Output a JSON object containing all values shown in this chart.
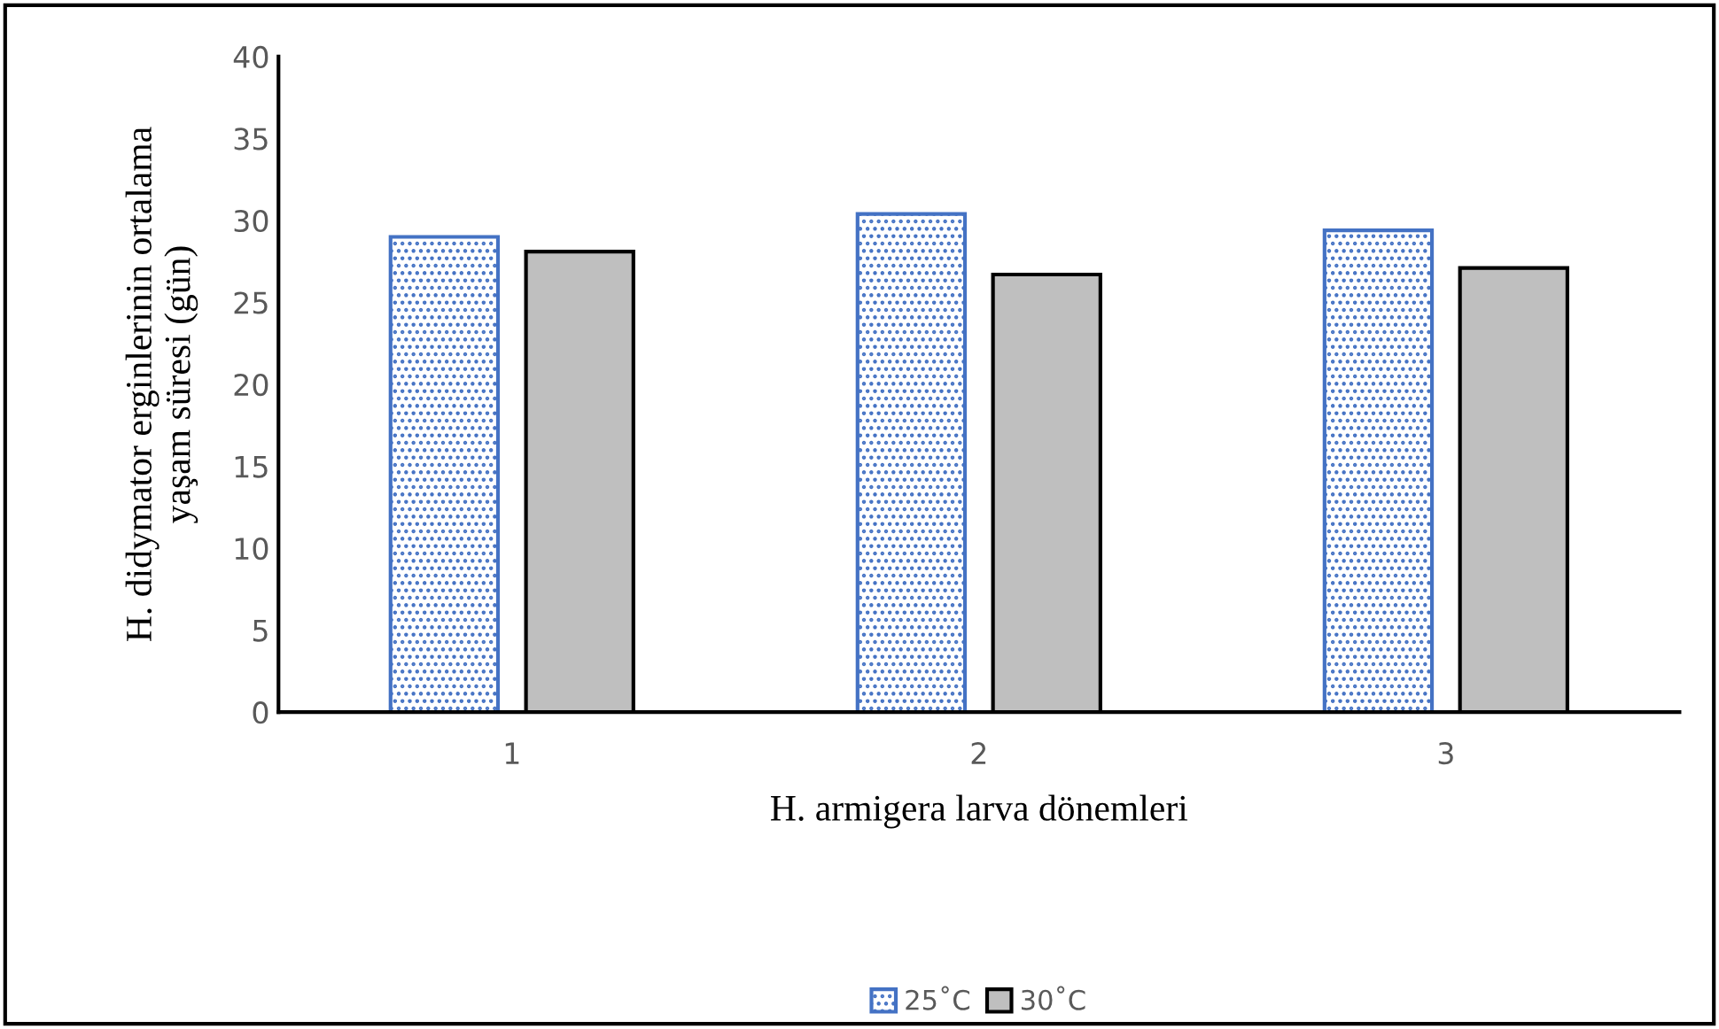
{
  "chart_data": {
    "type": "bar",
    "categories": [
      "1",
      "2",
      "3"
    ],
    "series": [
      {
        "name": "25˚C",
        "color": "#4472c4",
        "values": [
          29.0,
          30.4,
          29.4
        ]
      },
      {
        "name": "30˚C",
        "color": "#bfbfbf",
        "values": [
          28.1,
          26.7,
          27.1
        ]
      }
    ],
    "ylim": [
      0,
      40
    ],
    "yticks": [
      0,
      5,
      10,
      15,
      20,
      25,
      30,
      35,
      40
    ],
    "xlabel": "H. armigera larva dönemleri",
    "ylabel": "H. didymator erginlerinin ortalama\nyaşam süresi (gün)",
    "legend": "bottom",
    "grid": false
  }
}
